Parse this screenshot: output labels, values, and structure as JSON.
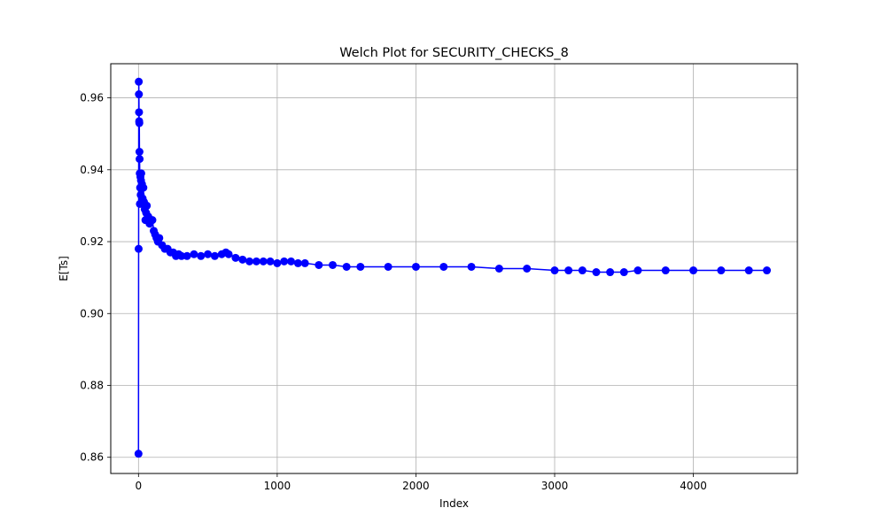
{
  "chart_data": {
    "type": "line",
    "title": "Welch Plot for SECURITY_CHECKS_8",
    "xlabel": "Index",
    "ylabel": "E[Ts]",
    "xlim": [
      -200,
      4750
    ],
    "ylim": [
      0.8555,
      0.9695
    ],
    "xticks": [
      0,
      1000,
      2000,
      3000,
      4000
    ],
    "xtick_labels": [
      "0",
      "1000",
      "2000",
      "3000",
      "4000"
    ],
    "yticks": [
      0.86,
      0.88,
      0.9,
      0.92,
      0.94,
      0.96
    ],
    "ytick_labels": [
      "0.86",
      "0.88",
      "0.90",
      "0.92",
      "0.94",
      "0.96"
    ],
    "grid": true,
    "markers": true,
    "series": [
      {
        "color": "#0000ff",
        "x": [
          0,
          1,
          2,
          3,
          4,
          5,
          6,
          7,
          8,
          9,
          10,
          12,
          14,
          16,
          18,
          20,
          25,
          30,
          35,
          40,
          45,
          50,
          55,
          60,
          70,
          80,
          90,
          100,
          110,
          120,
          130,
          140,
          150,
          170,
          190,
          210,
          230,
          250,
          270,
          290,
          310,
          350,
          400,
          450,
          500,
          550,
          600,
          630,
          650,
          700,
          750,
          800,
          850,
          900,
          950,
          1000,
          1050,
          1100,
          1150,
          1200,
          1300,
          1400,
          1500,
          1600,
          1800,
          2000,
          2200,
          2400,
          2600,
          2800,
          3000,
          3100,
          3200,
          3300,
          3400,
          3500,
          3600,
          3800,
          4000,
          4200,
          4400,
          4530
        ],
        "values": [
          0.861,
          0.918,
          0.9645,
          0.961,
          0.956,
          0.9535,
          0.953,
          0.945,
          0.943,
          0.939,
          0.9305,
          0.935,
          0.938,
          0.933,
          0.937,
          0.939,
          0.936,
          0.932,
          0.935,
          0.931,
          0.929,
          0.926,
          0.928,
          0.93,
          0.927,
          0.925,
          0.926,
          0.926,
          0.923,
          0.922,
          0.921,
          0.92,
          0.921,
          0.919,
          0.918,
          0.918,
          0.917,
          0.917,
          0.916,
          0.9165,
          0.916,
          0.916,
          0.9165,
          0.916,
          0.9165,
          0.916,
          0.9165,
          0.917,
          0.9165,
          0.9155,
          0.915,
          0.9145,
          0.9145,
          0.9145,
          0.9145,
          0.914,
          0.9145,
          0.9145,
          0.914,
          0.914,
          0.9135,
          0.9135,
          0.913,
          0.913,
          0.913,
          0.913,
          0.913,
          0.913,
          0.9125,
          0.9125,
          0.912,
          0.912,
          0.912,
          0.9115,
          0.9115,
          0.9115,
          0.912,
          0.912,
          0.912,
          0.912,
          0.912,
          0.912
        ]
      }
    ]
  }
}
